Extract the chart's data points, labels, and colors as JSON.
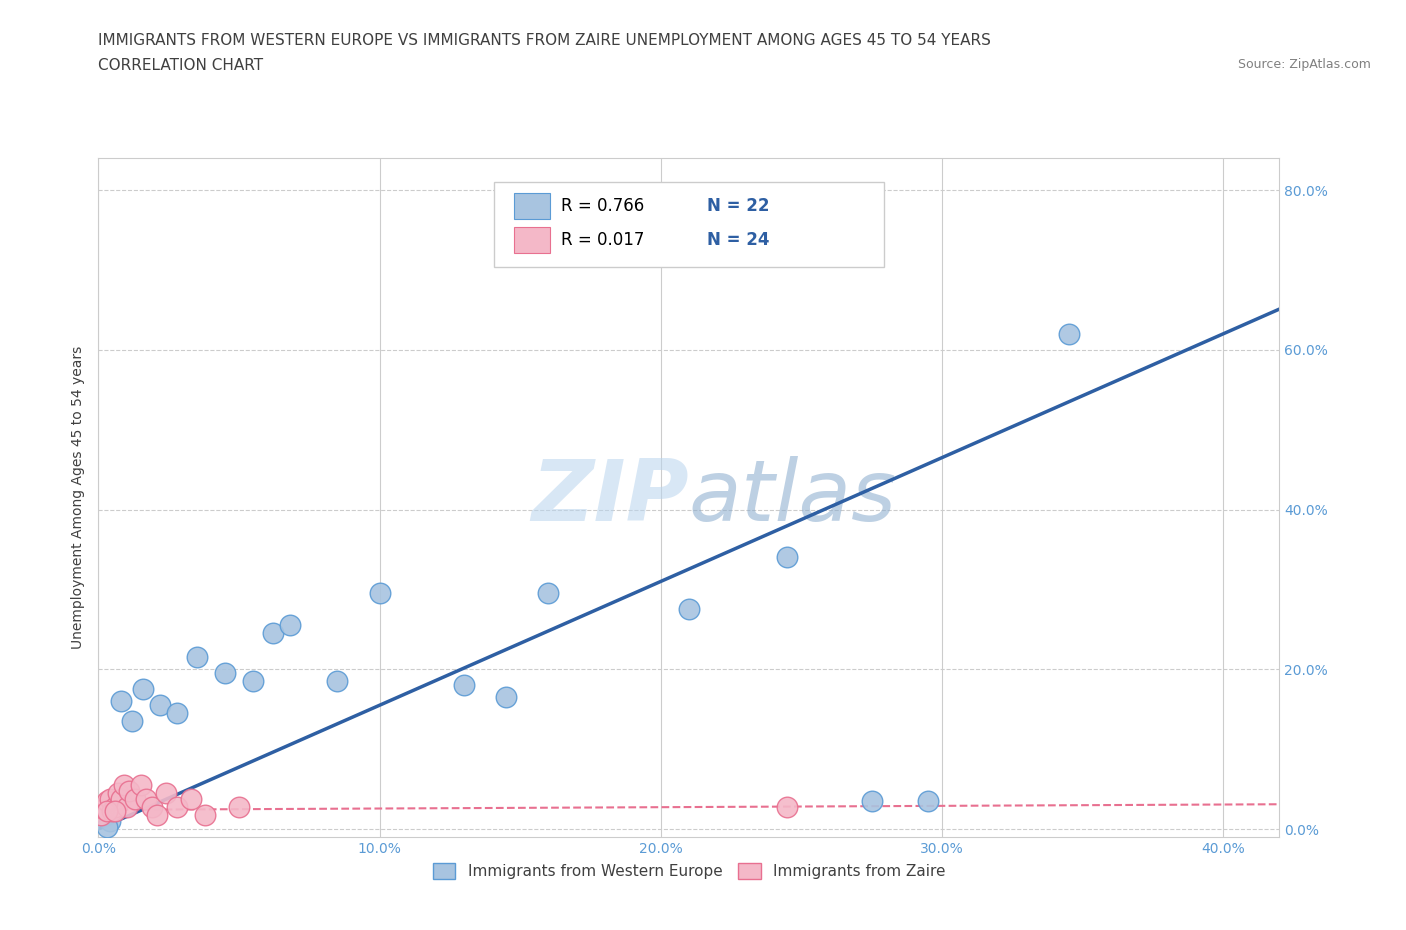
{
  "title_line1": "IMMIGRANTS FROM WESTERN EUROPE VS IMMIGRANTS FROM ZAIRE UNEMPLOYMENT AMONG AGES 45 TO 54 YEARS",
  "title_line2": "CORRELATION CHART",
  "source": "Source: ZipAtlas.com",
  "ylabel": "Unemployment Among Ages 45 to 54 years",
  "xlim": [
    0.0,
    0.42
  ],
  "ylim": [
    -0.01,
    0.84
  ],
  "xticks": [
    0.0,
    0.1,
    0.2,
    0.3,
    0.4
  ],
  "yticks": [
    0.0,
    0.2,
    0.4,
    0.6,
    0.8
  ],
  "xtick_labels": [
    "0.0%",
    "10.0%",
    "20.0%",
    "30.0%",
    "40.0%"
  ],
  "ytick_labels": [
    "0.0%",
    "20.0%",
    "40.0%",
    "60.0%",
    "80.0%"
  ],
  "blue_scatter_x": [
    0.004,
    0.008,
    0.012,
    0.016,
    0.022,
    0.028,
    0.035,
    0.045,
    0.055,
    0.062,
    0.068,
    0.085,
    0.1,
    0.13,
    0.145,
    0.16,
    0.21,
    0.245,
    0.275,
    0.295,
    0.345,
    0.003
  ],
  "blue_scatter_y": [
    0.01,
    0.16,
    0.135,
    0.175,
    0.155,
    0.145,
    0.215,
    0.195,
    0.185,
    0.245,
    0.255,
    0.185,
    0.295,
    0.18,
    0.165,
    0.295,
    0.275,
    0.34,
    0.035,
    0.035,
    0.62,
    0.003
  ],
  "pink_scatter_x": [
    0.001,
    0.002,
    0.003,
    0.004,
    0.005,
    0.006,
    0.007,
    0.008,
    0.009,
    0.01,
    0.011,
    0.013,
    0.015,
    0.017,
    0.019,
    0.021,
    0.024,
    0.028,
    0.033,
    0.038,
    0.05,
    0.245,
    0.003,
    0.006
  ],
  "pink_scatter_y": [
    0.018,
    0.025,
    0.035,
    0.038,
    0.022,
    0.028,
    0.045,
    0.038,
    0.055,
    0.028,
    0.048,
    0.038,
    0.055,
    0.038,
    0.028,
    0.018,
    0.045,
    0.028,
    0.038,
    0.018,
    0.028,
    0.028,
    0.022,
    0.022
  ],
  "blue_line_x": [
    0.0,
    0.42
  ],
  "blue_line_y": [
    0.0,
    0.651
  ],
  "pink_line_x": [
    0.0,
    0.42
  ],
  "pink_line_y": [
    0.024,
    0.031
  ],
  "blue_color": "#a8c4e0",
  "blue_edge_color": "#5b9bd5",
  "blue_line_color": "#2e5fa3",
  "pink_color": "#f4b8c8",
  "pink_edge_color": "#e87090",
  "pink_line_color": "#e87090",
  "legend_R_blue": "R = 0.766",
  "legend_N_blue": "N = 22",
  "legend_R_pink": "R = 0.017",
  "legend_N_pink": "N = 24",
  "legend_label_blue": "Immigrants from Western Europe",
  "legend_label_pink": "Immigrants from Zaire",
  "watermark": "ZIPatlas",
  "grid_color": "#cccccc",
  "bg_color": "#ffffff",
  "title_color": "#404040",
  "axis_label_color": "#404040",
  "tick_color": "#5b9bd5",
  "title_fontsize": 11,
  "subtitle_fontsize": 11,
  "source_fontsize": 9,
  "ylabel_fontsize": 10,
  "tick_fontsize": 10,
  "legend_fontsize": 12
}
